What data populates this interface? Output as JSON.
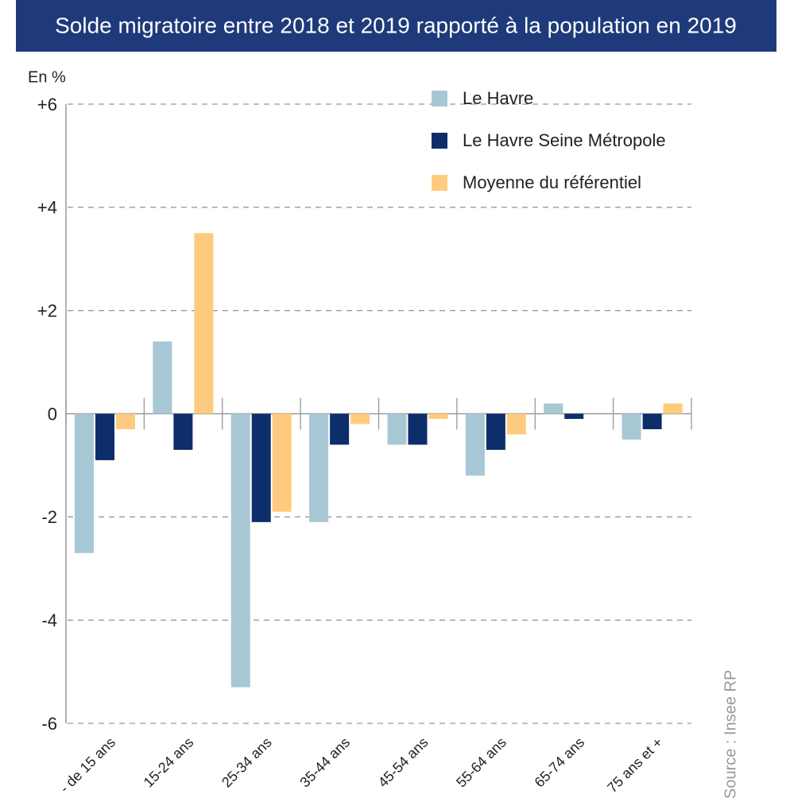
{
  "chart_data": {
    "type": "bar",
    "title": "Solde migratoire entre 2018 et 2019 rapporté à la population en 2019",
    "y_axis_label": "En %",
    "source": "Source : Insee RP",
    "categories": [
      "- de 15 ans",
      "15-24 ans",
      "25-34 ans",
      "35-44 ans",
      "45-54 ans",
      "55-64 ans",
      "65-74 ans",
      "75 ans et +"
    ],
    "series": [
      {
        "name": "Le Havre",
        "color": "#a7c7d5",
        "values": [
          -2.7,
          1.4,
          -5.3,
          -2.1,
          -0.6,
          -1.2,
          0.2,
          -0.5
        ]
      },
      {
        "name": "Le Havre Seine Métropole",
        "color": "#0d2e6b",
        "values": [
          -0.9,
          -0.7,
          -2.1,
          -0.6,
          -0.6,
          -0.7,
          -0.1,
          -0.3
        ]
      },
      {
        "name": "Moyenne du référentiel",
        "color": "#fecb7e",
        "values": [
          -0.3,
          3.5,
          -1.9,
          -0.2,
          -0.1,
          -0.4,
          0,
          0.2
        ]
      }
    ],
    "ylim": [
      -6,
      6
    ],
    "yticks": [
      {
        "value": 6,
        "label": "+6"
      },
      {
        "value": 4,
        "label": "+4"
      },
      {
        "value": 2,
        "label": "+2"
      },
      0,
      -2,
      -4,
      -6
    ],
    "grid": true
  }
}
